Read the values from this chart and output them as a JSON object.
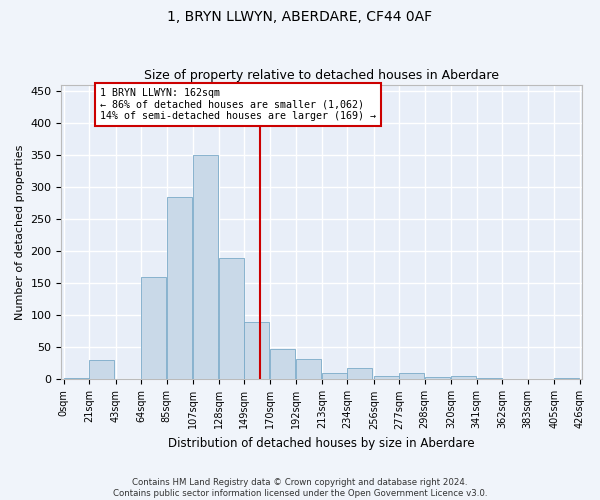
{
  "title": "1, BRYN LLWYN, ABERDARE, CF44 0AF",
  "subtitle": "Size of property relative to detached houses in Aberdare",
  "xlabel": "Distribution of detached houses by size in Aberdare",
  "ylabel": "Number of detached properties",
  "bar_color": "#c9d9e8",
  "bar_edge_color": "#7aaac8",
  "background_color": "#e8eef8",
  "grid_color": "#ffffff",
  "fig_background": "#f0f4fa",
  "vline_x": 162,
  "vline_color": "#cc0000",
  "annotation_text": "1 BRYN LLWYN: 162sqm\n← 86% of detached houses are smaller (1,062)\n14% of semi-detached houses are larger (169) →",
  "annotation_box_color": "#cc0000",
  "bins_left": [
    0,
    21,
    43,
    64,
    85,
    107,
    128,
    149,
    170,
    192,
    213,
    234,
    256,
    277,
    298,
    320,
    341,
    362,
    383,
    405
  ],
  "bin_width": 21,
  "bin_labels": [
    "0sqm",
    "21sqm",
    "43sqm",
    "64sqm",
    "85sqm",
    "107sqm",
    "128sqm",
    "149sqm",
    "170sqm",
    "192sqm",
    "213sqm",
    "234sqm",
    "256sqm",
    "277sqm",
    "298sqm",
    "320sqm",
    "341sqm",
    "362sqm",
    "383sqm",
    "405sqm",
    "426sqm"
  ],
  "counts": [
    2,
    30,
    0,
    160,
    284,
    350,
    190,
    90,
    48,
    32,
    10,
    18,
    6,
    10,
    4,
    6,
    2,
    0,
    0,
    2
  ],
  "ylim": [
    0,
    460
  ],
  "yticks": [
    0,
    50,
    100,
    150,
    200,
    250,
    300,
    350,
    400,
    450
  ],
  "footnote1": "Contains HM Land Registry data © Crown copyright and database right 2024.",
  "footnote2": "Contains public sector information licensed under the Open Government Licence v3.0."
}
